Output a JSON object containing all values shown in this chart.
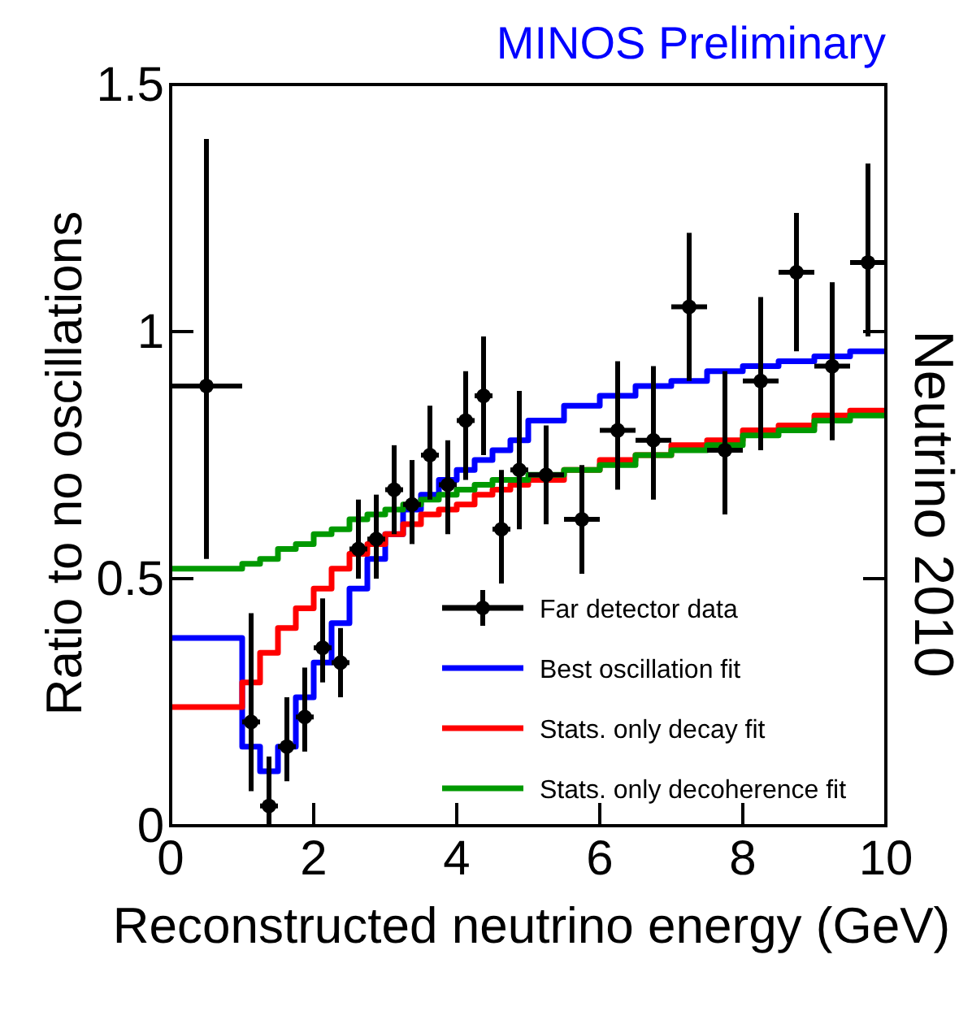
{
  "chart_data": {
    "type": "step",
    "xlabel": "Reconstructed neutrino energy (GeV)",
    "ylabel": "Ratio to no oscillations",
    "annotations": [
      "MINOS Preliminary",
      "Neutrino 2010"
    ],
    "xlim": [
      0,
      10
    ],
    "xticks": [
      0,
      2,
      4,
      6,
      8,
      10
    ],
    "ylim": [
      0,
      1.5
    ],
    "yticks": [
      0,
      0.5,
      1,
      1.5
    ],
    "legend": "bottom right",
    "grid": false,
    "series": [
      {
        "name": "Far detector data",
        "type": "scatter",
        "color": "#000000",
        "marker": "circle",
        "x": [
          0.5,
          1.125,
          1.375,
          1.625,
          1.875,
          2.125,
          2.375,
          2.625,
          2.875,
          3.125,
          3.375,
          3.625,
          3.875,
          4.125,
          4.375,
          4.625,
          4.875,
          5.25,
          5.75,
          6.25,
          6.75,
          7.25,
          7.75,
          8.25,
          8.75,
          9.25,
          9.75
        ],
        "values": [
          0.89,
          0.21,
          0.04,
          0.16,
          0.22,
          0.36,
          0.33,
          0.56,
          0.58,
          0.68,
          0.65,
          0.75,
          0.69,
          0.82,
          0.87,
          0.6,
          0.72,
          0.71,
          0.62,
          0.8,
          0.78,
          1.05,
          0.76,
          0.9,
          1.12,
          0.93,
          1.14
        ],
        "errors": [
          [
            0.54,
            1.39
          ],
          [
            0.07,
            0.43
          ],
          [
            0.0,
            0.14
          ],
          [
            0.09,
            0.26
          ],
          [
            0.15,
            0.32
          ],
          [
            0.29,
            0.46
          ],
          [
            0.26,
            0.4
          ],
          [
            0.5,
            0.66
          ],
          [
            0.5,
            0.67
          ],
          [
            0.59,
            0.77
          ],
          [
            0.57,
            0.74
          ],
          [
            0.66,
            0.85
          ],
          [
            0.59,
            0.78
          ],
          [
            0.7,
            0.92
          ],
          [
            0.75,
            0.99
          ],
          [
            0.49,
            0.72
          ],
          [
            0.6,
            0.88
          ],
          [
            0.61,
            0.81
          ],
          [
            0.51,
            0.73
          ],
          [
            0.68,
            0.94
          ],
          [
            0.66,
            0.93
          ],
          [
            0.9,
            1.2
          ],
          [
            0.63,
            0.92
          ],
          [
            0.76,
            1.07
          ],
          [
            0.96,
            1.24
          ],
          [
            0.78,
            1.1
          ],
          [
            0.99,
            1.34
          ]
        ],
        "xerrors": [
          0.5,
          0.125,
          0.125,
          0.125,
          0.125,
          0.125,
          0.125,
          0.125,
          0.125,
          0.125,
          0.125,
          0.125,
          0.125,
          0.125,
          0.125,
          0.125,
          0.125,
          0.25,
          0.25,
          0.25,
          0.25,
          0.25,
          0.25,
          0.25,
          0.25,
          0.25,
          0.25
        ]
      },
      {
        "name": "Best oscillation fit",
        "type": "step",
        "color": "#0000ff",
        "x": [
          0,
          1,
          1.25,
          1.5,
          1.75,
          2,
          2.25,
          2.5,
          2.75,
          3,
          3.25,
          3.5,
          3.75,
          4,
          4.25,
          4.5,
          4.75,
          5,
          5.5,
          6,
          6.5,
          7,
          7.5,
          8,
          8.5,
          9,
          9.5,
          10
        ],
        "values": [
          0.38,
          0.16,
          0.11,
          0.16,
          0.26,
          0.33,
          0.41,
          0.48,
          0.54,
          0.59,
          0.64,
          0.67,
          0.7,
          0.72,
          0.74,
          0.76,
          0.78,
          0.82,
          0.85,
          0.87,
          0.89,
          0.9,
          0.92,
          0.93,
          0.94,
          0.95,
          0.96,
          0.96
        ]
      },
      {
        "name": "Stats. only decay fit",
        "type": "step",
        "color": "#ff0000",
        "x": [
          0,
          1,
          1.25,
          1.5,
          1.75,
          2,
          2.25,
          2.5,
          2.75,
          3,
          3.25,
          3.5,
          3.75,
          4,
          4.25,
          4.5,
          4.75,
          5,
          5.5,
          6,
          6.5,
          7,
          7.5,
          8,
          8.5,
          9,
          9.5,
          10
        ],
        "values": [
          0.24,
          0.29,
          0.35,
          0.4,
          0.44,
          0.48,
          0.52,
          0.55,
          0.57,
          0.59,
          0.61,
          0.63,
          0.64,
          0.65,
          0.67,
          0.68,
          0.69,
          0.7,
          0.72,
          0.74,
          0.75,
          0.77,
          0.78,
          0.8,
          0.81,
          0.83,
          0.84,
          0.84
        ]
      },
      {
        "name": "Stats. only decoherence fit",
        "type": "step",
        "color": "#009900",
        "x": [
          0,
          1,
          1.25,
          1.5,
          1.75,
          2,
          2.25,
          2.5,
          2.75,
          3,
          3.25,
          3.5,
          3.75,
          4,
          4.25,
          4.5,
          4.75,
          5,
          5.5,
          6,
          6.5,
          7,
          7.5,
          8,
          8.5,
          9,
          9.5,
          10
        ],
        "values": [
          0.52,
          0.53,
          0.54,
          0.56,
          0.57,
          0.59,
          0.6,
          0.62,
          0.63,
          0.64,
          0.65,
          0.66,
          0.67,
          0.68,
          0.69,
          0.7,
          0.7,
          0.71,
          0.72,
          0.73,
          0.75,
          0.76,
          0.77,
          0.79,
          0.8,
          0.82,
          0.83,
          0.83
        ]
      }
    ]
  }
}
